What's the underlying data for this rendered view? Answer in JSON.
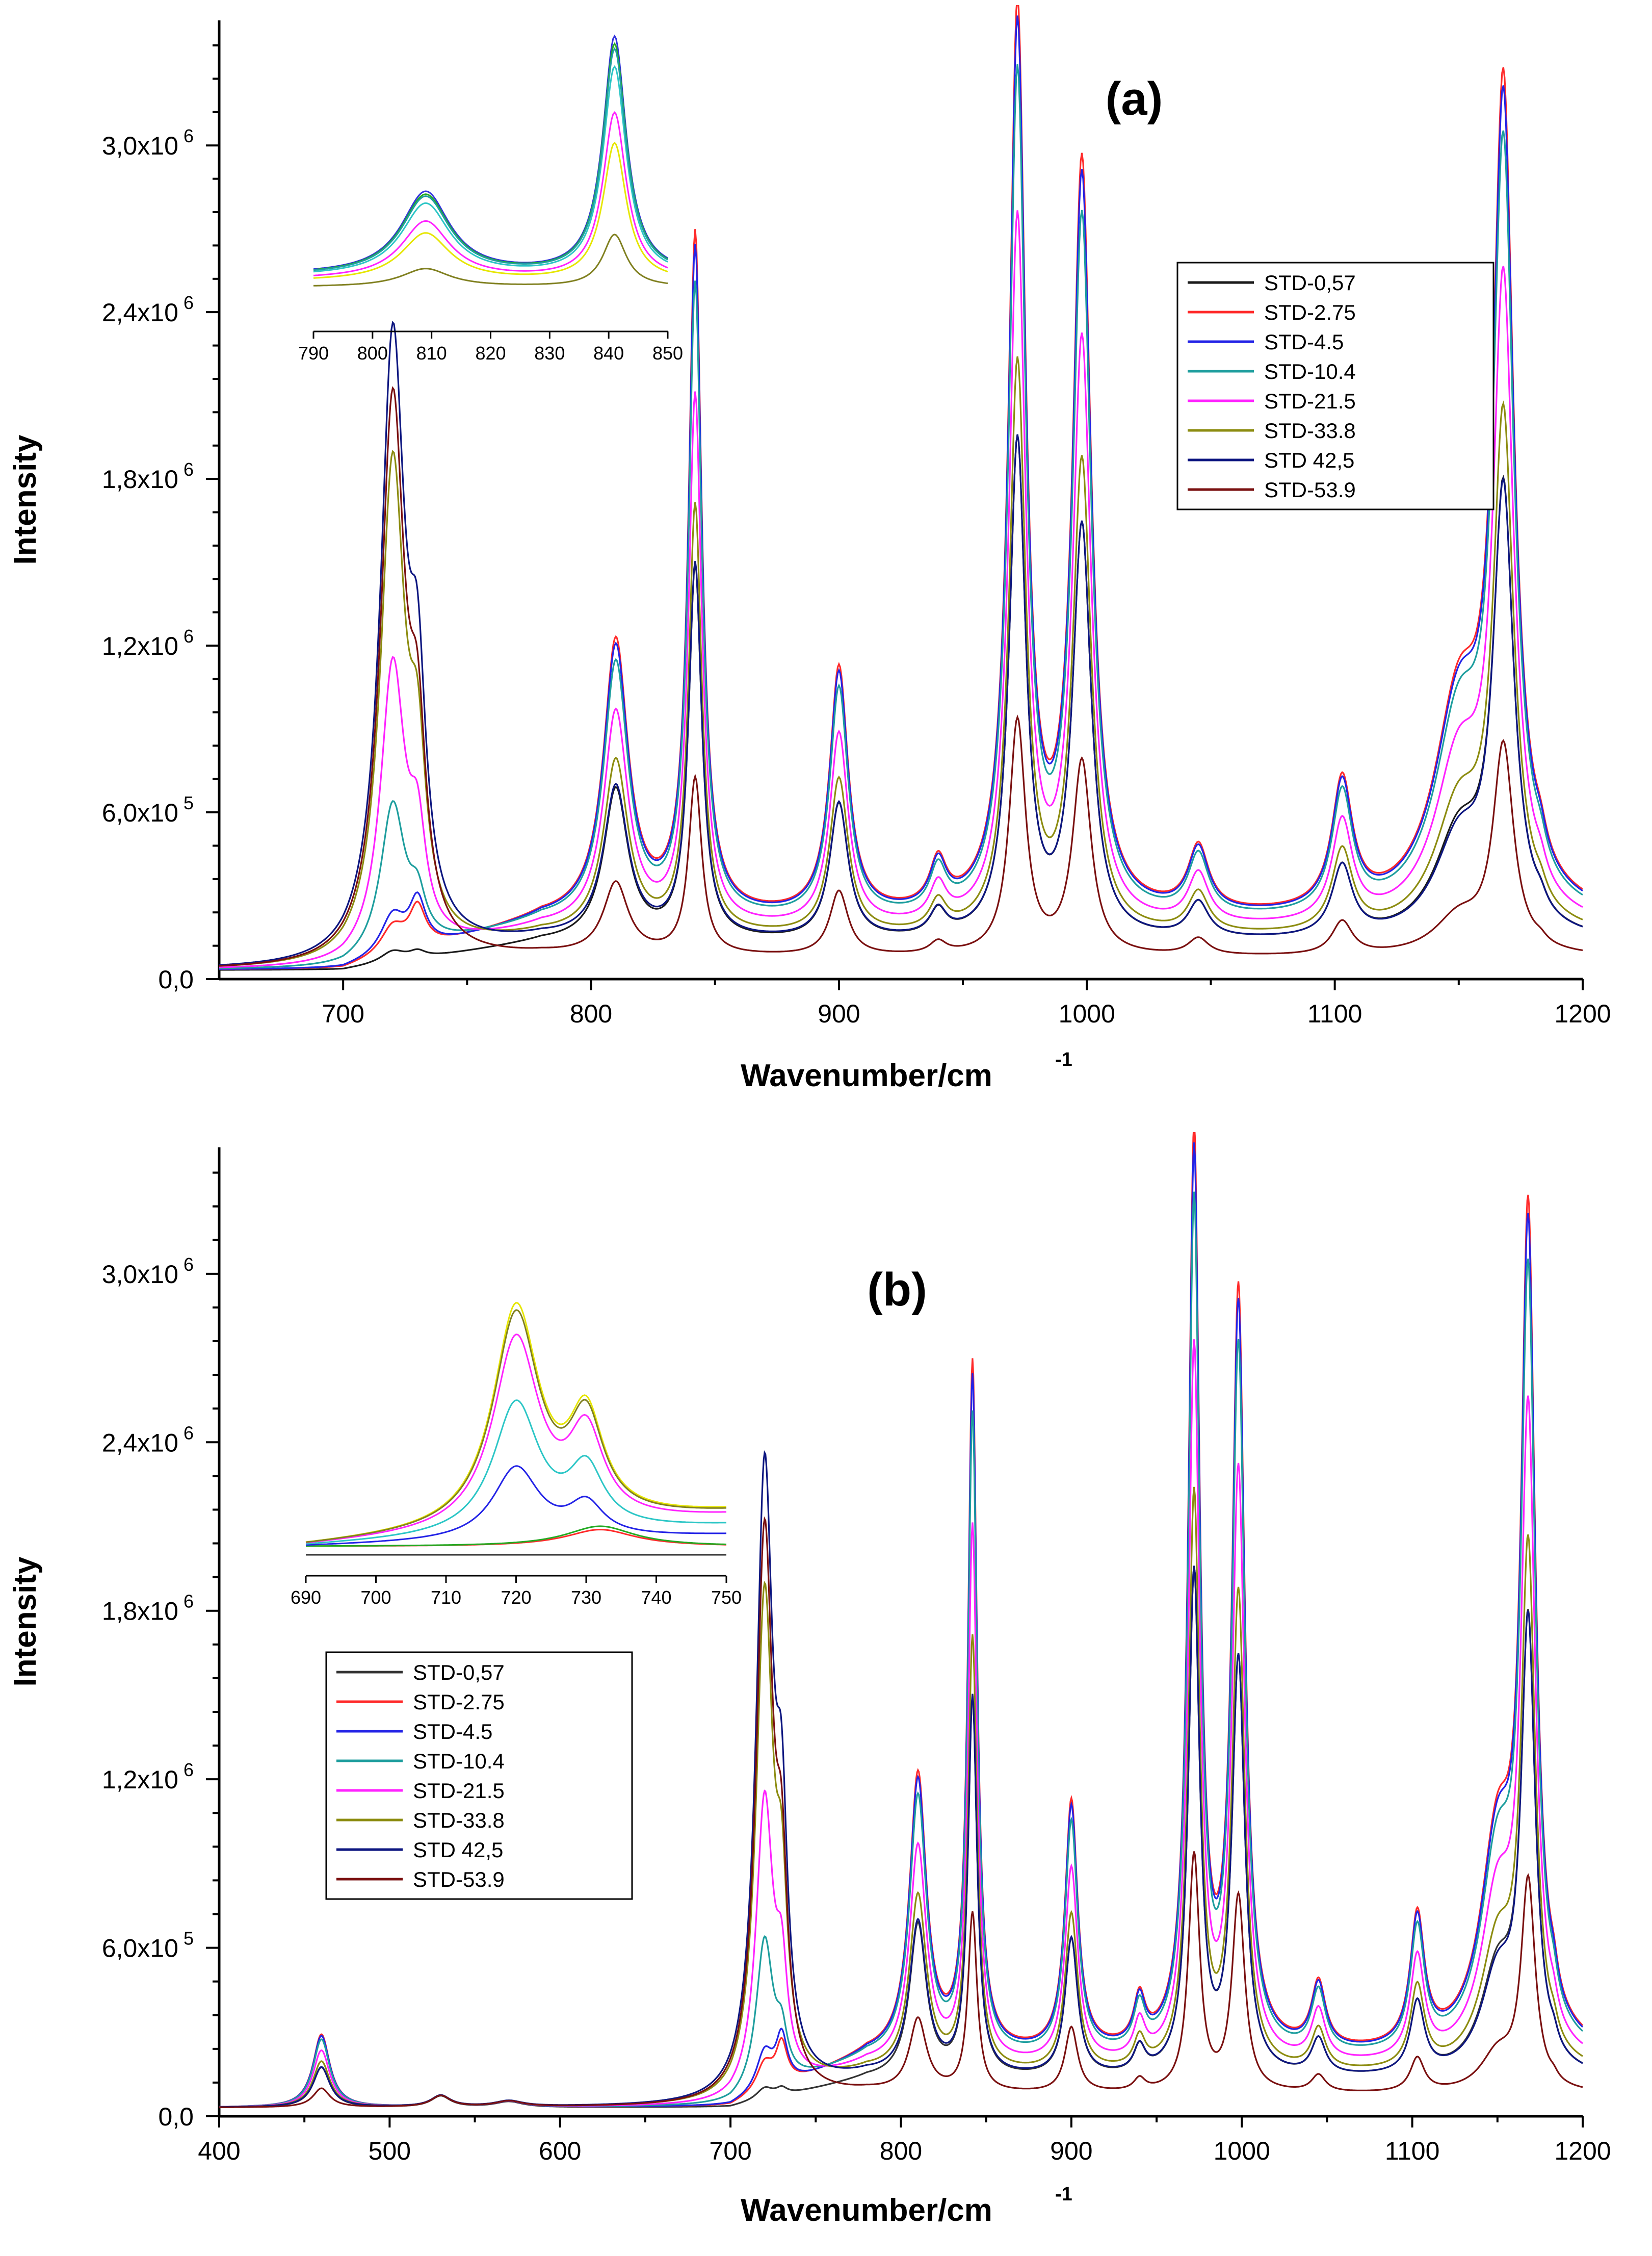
{
  "chart_data": [
    {
      "type": "line",
      "panel_label": "(a)",
      "xlabel": "Wavenumber/cm",
      "xlabel_sup": "-1",
      "ylabel": "Intensity",
      "xlim": [
        650,
        1200
      ],
      "ylim": [
        0,
        3450000
      ],
      "xticks": [
        700,
        800,
        900,
        1000,
        1100,
        1200
      ],
      "xtick_labels": [
        "700",
        "800",
        "900",
        "1000",
        "1100",
        "1200"
      ],
      "yticks": [
        0,
        600000,
        1200000,
        1800000,
        2400000,
        3000000
      ],
      "ytick_labels": [
        {
          "base": "0,0",
          "exp": ""
        },
        {
          "base": "6,0x10",
          "exp": "5"
        },
        {
          "base": "1,2x10",
          "exp": "6"
        },
        {
          "base": "1,8x10",
          "exp": "6"
        },
        {
          "base": "2,4x10",
          "exp": "6"
        },
        {
          "base": "3,0x10",
          "exp": "6"
        }
      ],
      "legend_position": "right",
      "series": [
        {
          "name": "STD-0,57",
          "color": "#1a1a1a",
          "scale": 0.55,
          "band720": 0.02,
          "band730": 0.02,
          "lo1150": 0.9
        },
        {
          "name": "STD-2.75",
          "color": "#ff2a2a",
          "scale": 1.0,
          "band720": 0.05,
          "band730": 0.12,
          "lo1150": 1.0
        },
        {
          "name": "STD-4.5",
          "color": "#2323e6",
          "scale": 0.98,
          "band720": 0.07,
          "band730": 0.14,
          "lo1150": 1.0
        },
        {
          "name": "STD-10.4",
          "color": "#1e9e9e",
          "scale": 0.93,
          "band720": 0.27,
          "band730": 0.12,
          "lo1150": 1.0
        },
        {
          "name": "STD-21.5",
          "color": "#ff22ff",
          "scale": 0.78,
          "band720": 0.52,
          "band730": 0.28,
          "lo1150": 1.0
        },
        {
          "name": "STD-33.8",
          "color": "#8c8c10",
          "scale": 0.63,
          "band720": 0.88,
          "band730": 0.45,
          "lo1150": 0.95
        },
        {
          "name": "STD 42,5",
          "color": "#0d1680",
          "scale": 0.55,
          "band720": 1.1,
          "band730": 0.62,
          "lo1150": 0.85
        },
        {
          "name": "STD-53.9",
          "color": "#7a1010",
          "scale": 0.26,
          "band720": 1.0,
          "band730": 0.5,
          "lo1150": 0.7
        }
      ],
      "inset": {
        "xlim": [
          790,
          850
        ],
        "xticks": [
          790,
          800,
          810,
          820,
          830,
          840,
          850
        ],
        "xtick_labels": [
          "790",
          "800",
          "810",
          "820",
          "830",
          "840",
          "850"
        ],
        "series_colors": [
          "#3333dd",
          "#22aa22",
          "#2cc6c6",
          "#ff22ff",
          "#e6e600",
          "#808020",
          "#1e9e9e"
        ],
        "series_scales": [
          1.0,
          0.97,
          0.88,
          0.7,
          0.58,
          0.22,
          0.95
        ]
      }
    },
    {
      "type": "line",
      "panel_label": "(b)",
      "xlabel": "Wavenumber/cm",
      "xlabel_sup": "-1",
      "ylabel": "Intensity",
      "xlim": [
        400,
        1200
      ],
      "ylim": [
        0,
        3450000
      ],
      "xticks": [
        400,
        500,
        600,
        700,
        800,
        900,
        1000,
        1100,
        1200
      ],
      "xtick_labels": [
        "400",
        "500",
        "600",
        "700",
        "800",
        "900",
        "1000",
        "1100",
        "1200"
      ],
      "yticks": [
        0,
        600000,
        1200000,
        1800000,
        2400000,
        3000000
      ],
      "ytick_labels": [
        {
          "base": "0,0",
          "exp": ""
        },
        {
          "base": "6,0x10",
          "exp": "5"
        },
        {
          "base": "1,2x10",
          "exp": "6"
        },
        {
          "base": "1,8x10",
          "exp": "6"
        },
        {
          "base": "2,4x10",
          "exp": "6"
        },
        {
          "base": "3,0x10",
          "exp": "6"
        }
      ],
      "legend_position": "left",
      "series": [
        {
          "name": "STD-0,57",
          "color": "#333333",
          "scale": 0.55,
          "band720": 0.02,
          "band730": 0.02,
          "lo1150": 0.9
        },
        {
          "name": "STD-2.75",
          "color": "#ff2a2a",
          "scale": 1.0,
          "band720": 0.05,
          "band730": 0.12,
          "lo1150": 1.0
        },
        {
          "name": "STD-4.5",
          "color": "#2323e6",
          "scale": 0.98,
          "band720": 0.07,
          "band730": 0.14,
          "lo1150": 1.0
        },
        {
          "name": "STD-10.4",
          "color": "#1e9e9e",
          "scale": 0.93,
          "band720": 0.27,
          "band730": 0.12,
          "lo1150": 1.0
        },
        {
          "name": "STD-21.5",
          "color": "#ff22ff",
          "scale": 0.78,
          "band720": 0.52,
          "band730": 0.28,
          "lo1150": 1.0
        },
        {
          "name": "STD-33.8",
          "color": "#8c8c10",
          "scale": 0.63,
          "band720": 0.88,
          "band730": 0.45,
          "lo1150": 0.95
        },
        {
          "name": "STD 42,5",
          "color": "#0d1680",
          "scale": 0.55,
          "band720": 1.1,
          "band730": 0.62,
          "lo1150": 0.85
        },
        {
          "name": "STD-53.9",
          "color": "#7a1010",
          "scale": 0.26,
          "band720": 1.0,
          "band730": 0.5,
          "lo1150": 0.7
        }
      ],
      "inset": {
        "xlim": [
          690,
          750
        ],
        "xticks": [
          690,
          700,
          710,
          720,
          730,
          740,
          750
        ],
        "xtick_labels": [
          "690",
          "700",
          "710",
          "720",
          "730",
          "740",
          "750"
        ],
        "series_colors": [
          "#333333",
          "#ff2a2a",
          "#22aa22",
          "#2323e6",
          "#2cc6c6",
          "#ff22ff",
          "#e6e600",
          "#808020"
        ],
        "series_scales": [
          0.0,
          0.06,
          0.08,
          0.33,
          0.6,
          0.87,
          1.0,
          0.97
        ]
      }
    }
  ]
}
